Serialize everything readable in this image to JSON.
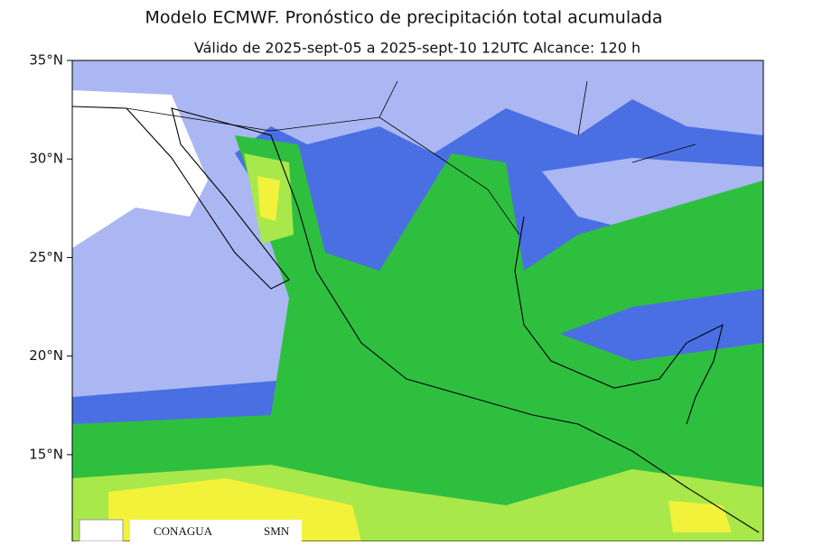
{
  "title": "Modelo ECMWF. Pronóstico de precipitación total acumulada",
  "subtitle": "Válido de 2025-sept-05 a 2025-sept-10 12UTC   Alcance: 120 h",
  "map": {
    "ylim": [
      10.6,
      35
    ],
    "yticks": [
      {
        "value": 35,
        "label": "35°N"
      },
      {
        "value": 30,
        "label": "30°N"
      },
      {
        "value": 25,
        "label": "25°N"
      },
      {
        "value": 20,
        "label": "20°N"
      },
      {
        "value": 15,
        "label": "15°N"
      }
    ]
  },
  "logos": [
    "CONAGUA",
    "SMN"
  ]
}
